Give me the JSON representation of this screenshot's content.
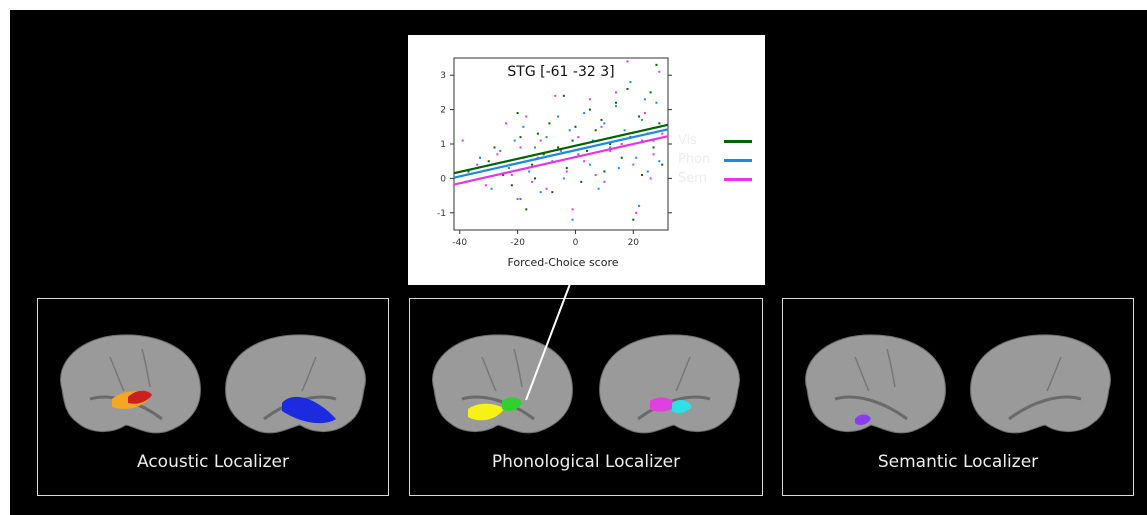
{
  "chart_data": {
    "type": "scatter",
    "title": "STG [-61 -32 3]",
    "xlabel": "Forced-Choice score",
    "ylabel": "",
    "xlim": [
      -42,
      32
    ],
    "ylim": [
      -1.5,
      3.5
    ],
    "xticks": [
      -40,
      -20,
      0,
      20
    ],
    "yticks": [
      -1,
      0,
      1,
      2,
      3
    ],
    "legend_position": "right",
    "series": [
      {
        "name": "Vis",
        "color": "#006400",
        "fit": {
          "intercept": 0.95,
          "slope": 0.019
        },
        "points": [
          [
            -37,
            0.2
          ],
          [
            -30,
            0.5
          ],
          [
            -28,
            0.9
          ],
          [
            -25,
            0.1
          ],
          [
            -22,
            -0.2
          ],
          [
            -20,
            1.9
          ],
          [
            -19,
            1.2
          ],
          [
            -18,
            0.6
          ],
          [
            -17,
            -0.9
          ],
          [
            -15,
            0.4
          ],
          [
            -14,
            0.0
          ],
          [
            -13,
            1.3
          ],
          [
            -11,
            0.7
          ],
          [
            -9,
            1.6
          ],
          [
            -8,
            -0.4
          ],
          [
            -6,
            0.9
          ],
          [
            -4,
            2.4
          ],
          [
            -3,
            0.3
          ],
          [
            -1,
            1.1
          ],
          [
            0,
            1.5
          ],
          [
            2,
            -0.1
          ],
          [
            4,
            0.8
          ],
          [
            5,
            2.0
          ],
          [
            7,
            1.4
          ],
          [
            9,
            1.7
          ],
          [
            10,
            0.2
          ],
          [
            12,
            1.0
          ],
          [
            14,
            2.2
          ],
          [
            16,
            0.6
          ],
          [
            18,
            2.6
          ],
          [
            19,
            1.2
          ],
          [
            20,
            -1.2
          ],
          [
            22,
            1.8
          ],
          [
            23,
            0.1
          ],
          [
            25,
            1.3
          ],
          [
            26,
            2.5
          ],
          [
            27,
            0.9
          ],
          [
            28,
            3.3
          ],
          [
            29,
            1.6
          ],
          [
            30,
            0.4
          ]
        ]
      },
      {
        "name": "Phon",
        "color": "#1e88e5",
        "fit": {
          "intercept": 0.82,
          "slope": 0.019
        },
        "points": [
          [
            -38,
            -0.1
          ],
          [
            -33,
            0.6
          ],
          [
            -29,
            -0.3
          ],
          [
            -26,
            0.8
          ],
          [
            -23,
            0.3
          ],
          [
            -21,
            1.1
          ],
          [
            -19,
            -0.6
          ],
          [
            -18,
            1.5
          ],
          [
            -16,
            0.2
          ],
          [
            -14,
            0.9
          ],
          [
            -12,
            -0.4
          ],
          [
            -10,
            1.2
          ],
          [
            -8,
            0.5
          ],
          [
            -6,
            1.8
          ],
          [
            -4,
            0.0
          ],
          [
            -2,
            1.4
          ],
          [
            -1,
            -1.2
          ],
          [
            1,
            0.7
          ],
          [
            3,
            1.9
          ],
          [
            5,
            0.4
          ],
          [
            6,
            1.1
          ],
          [
            8,
            -0.3
          ],
          [
            10,
            1.6
          ],
          [
            12,
            0.9
          ],
          [
            14,
            2.1
          ],
          [
            15,
            0.3
          ],
          [
            17,
            1.4
          ],
          [
            19,
            2.8
          ],
          [
            21,
            0.6
          ],
          [
            22,
            -0.8
          ],
          [
            23,
            1.7
          ],
          [
            24,
            2.3
          ],
          [
            25,
            0.2
          ],
          [
            27,
            1.1
          ],
          [
            28,
            2.2
          ],
          [
            29,
            0.5
          ]
        ]
      },
      {
        "name": "Sem",
        "color": "#e535e5",
        "fit": {
          "intercept": 0.62,
          "slope": 0.019
        },
        "points": [
          [
            -39,
            1.1
          ],
          [
            -34,
            0.4
          ],
          [
            -31,
            -0.2
          ],
          [
            -27,
            0.7
          ],
          [
            -24,
            1.6
          ],
          [
            -22,
            0.1
          ],
          [
            -20,
            -0.6
          ],
          [
            -19,
            0.9
          ],
          [
            -17,
            1.8
          ],
          [
            -15,
            -0.1
          ],
          [
            -13,
            0.6
          ],
          [
            -12,
            1.1
          ],
          [
            -10,
            -0.3
          ],
          [
            -7,
            2.4
          ],
          [
            -5,
            0.8
          ],
          [
            -3,
            0.2
          ],
          [
            -1,
            -0.9
          ],
          [
            1,
            1.2
          ],
          [
            3,
            0.5
          ],
          [
            5,
            2.3
          ],
          [
            7,
            0.1
          ],
          [
            9,
            1.5
          ],
          [
            10,
            -0.1
          ],
          [
            12,
            0.8
          ],
          [
            14,
            2.5
          ],
          [
            16,
            1.0
          ],
          [
            18,
            3.4
          ],
          [
            20,
            0.4
          ],
          [
            21,
            -1.0
          ],
          [
            23,
            1.1
          ],
          [
            24,
            1.9
          ],
          [
            26,
            0.0
          ],
          [
            27,
            0.7
          ],
          [
            29,
            3.1
          ],
          [
            30,
            1.3
          ]
        ]
      }
    ]
  },
  "panels": [
    {
      "label": "Acoustic Localizer"
    },
    {
      "label": "Phonological  Localizer"
    },
    {
      "label": "Semantic Localizer"
    }
  ],
  "colors": {
    "background": "#000000",
    "brain": "#9a9a9a",
    "acoustic_red": "#cc1f1f",
    "acoustic_orange": "#f5a623",
    "acoustic_blue": "#1c2be0",
    "phon_yellow": "#f6f215",
    "phon_green": "#2fd02f",
    "phon_magenta": "#e040e0",
    "phon_cyan": "#2fe0e6",
    "sem_purple": "#8a3df0"
  }
}
